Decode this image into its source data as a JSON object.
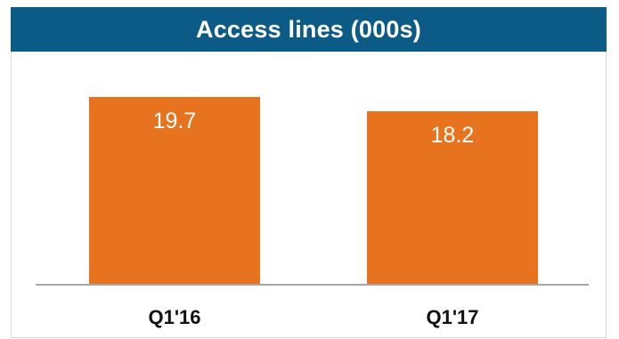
{
  "chart_data": {
    "type": "bar",
    "title": "Access lines (000s)",
    "categories": [
      "Q1'16",
      "Q1'17"
    ],
    "values": [
      19.7,
      18.2
    ],
    "value_labels": [
      "19.7",
      "18.2"
    ],
    "xlabel": "",
    "ylabel": "",
    "ylim": [
      0,
      21
    ],
    "grid": false,
    "legend": "none"
  },
  "colors": {
    "header_bg": "#0c5a86",
    "bar": "#e8731f",
    "axis": "#a6a6a6"
  }
}
